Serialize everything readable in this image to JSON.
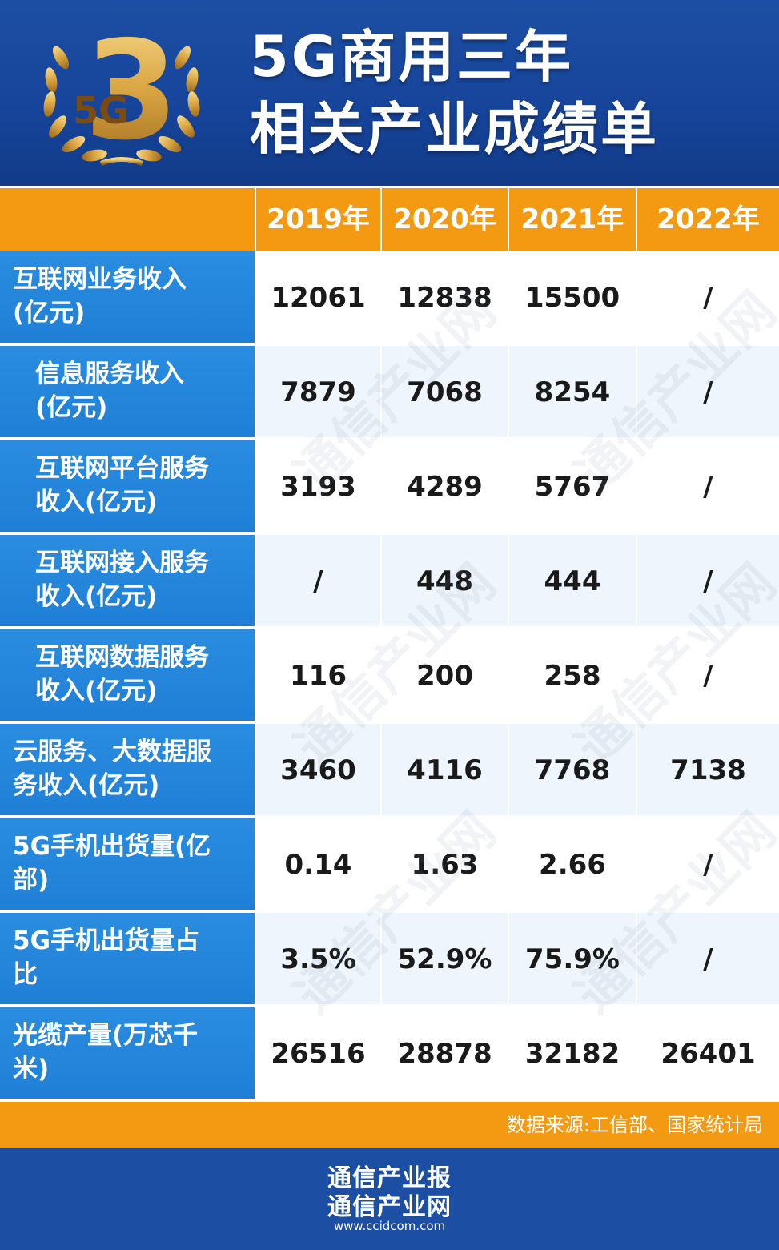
{
  "header": {
    "title_line1": "5G商用三年",
    "title_line2": "相关产业成绩单",
    "emblem_number": "3",
    "emblem_text": "5G"
  },
  "colors": {
    "header_blue": "#1c4fa3",
    "label_blue": "#1f7fd6",
    "accent_orange": "#f39a12",
    "emblem_gold": "#d9a441"
  },
  "chart_data": {
    "type": "table",
    "columns": [
      "2019年",
      "2020年",
      "2021年",
      "2022年"
    ],
    "rows": [
      {
        "label": "互联网业务收入(亿元)",
        "values": [
          "12061",
          "12838",
          "15500",
          "/"
        ]
      },
      {
        "label": "信息服务收入(亿元)",
        "values": [
          "7879",
          "7068",
          "8254",
          "/"
        ]
      },
      {
        "label": "互联网平台服务收入(亿元)",
        "values": [
          "3193",
          "4289",
          "5767",
          "/"
        ]
      },
      {
        "label": "互联网接入服务收入(亿元)",
        "values": [
          "/",
          "448",
          "444",
          "/"
        ]
      },
      {
        "label": "互联网数据服务收入(亿元)",
        "values": [
          "116",
          "200",
          "258",
          "/"
        ]
      },
      {
        "label": "云服务、大数据服务收入(亿元)",
        "values": [
          "3460",
          "4116",
          "7768",
          "7138"
        ]
      },
      {
        "label": "5G手机出货量(亿部)",
        "values": [
          "0.14",
          "1.63",
          "2.66",
          "/"
        ]
      },
      {
        "label": "5G手机出货量占比",
        "values": [
          "3.5%",
          "52.9%",
          "75.9%",
          "/"
        ]
      },
      {
        "label": "光缆产量(万芯千米)",
        "values": [
          "26516",
          "28878",
          "32182",
          "26401"
        ]
      }
    ]
  },
  "table": {
    "row_labels_display": [
      {
        "l1": "互联网业务收入",
        "l2": "(亿元)"
      },
      {
        "l1": "信息服务收入",
        "l2": "(亿元)"
      },
      {
        "l1": "互联网平台服务",
        "l2": "收入(亿元)"
      },
      {
        "l1": "互联网接入服务",
        "l2": "收入(亿元)"
      },
      {
        "l1": "互联网数据服务",
        "l2": "收入(亿元)"
      },
      {
        "l1": "云服务、大数据服",
        "l2": "务收入(亿元)"
      },
      {
        "l1": "5G手机出货量(亿",
        "l2": "部)"
      },
      {
        "l1": "5G手机出货量占",
        "l2": "比"
      },
      {
        "l1": "光缆产量(万芯千",
        "l2": "米)"
      }
    ]
  },
  "source_text": "数据来源:工信部、国家统计局",
  "watermark": {
    "text": "通信产业网",
    "url": "www.ccidcom.com"
  },
  "footer": {
    "line1": "通信产业报",
    "line2": "通信产业网",
    "url": "www.ccidcom.com"
  }
}
